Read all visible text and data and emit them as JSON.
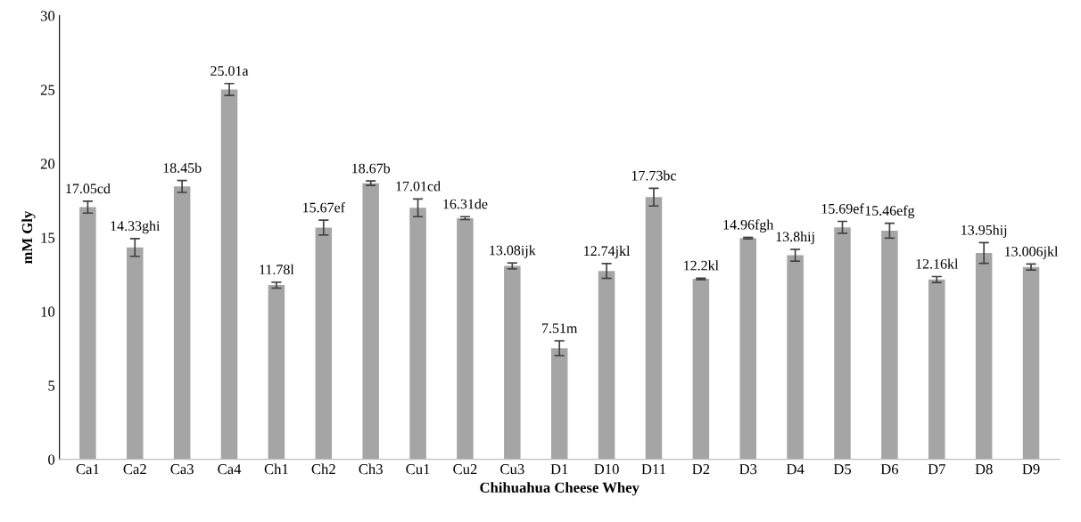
{
  "chart_data": {
    "type": "bar",
    "xlabel": "Chihuahua Cheese Whey",
    "ylabel": "mM Gly",
    "categories": [
      "Ca1",
      "Ca2",
      "Ca3",
      "Ca4",
      "Ch1",
      "Ch2",
      "Ch3",
      "Cu1",
      "Cu2",
      "Cu3",
      "D1",
      "D10",
      "D11",
      "D2",
      "D3",
      "D4",
      "D5",
      "D6",
      "D7",
      "D8",
      "D9"
    ],
    "values": [
      17.05,
      14.33,
      18.45,
      25.01,
      11.78,
      15.67,
      18.67,
      17.01,
      16.31,
      13.08,
      7.51,
      12.74,
      17.73,
      12.2,
      14.96,
      13.8,
      15.69,
      15.46,
      12.16,
      13.95,
      13.006
    ],
    "errors": [
      0.4,
      0.6,
      0.4,
      0.4,
      0.2,
      0.5,
      0.15,
      0.6,
      0.1,
      0.2,
      0.5,
      0.5,
      0.6,
      0.05,
      0.05,
      0.4,
      0.4,
      0.5,
      0.2,
      0.7,
      0.2
    ],
    "value_labels": [
      "17.05cd",
      "14.33ghi",
      "18.45b",
      "25.01a",
      "11.78l",
      "15.67ef",
      "18.67b",
      "17.01cd",
      "16.31de",
      "13.08ijk",
      "7.51m",
      "12.74jkl",
      "17.73bc",
      "12.2kl",
      "14.96fgh",
      "13.8hij",
      "15.69ef",
      "15.46efg",
      "12.16kl",
      "13.95hij",
      "13.006jkl"
    ],
    "color": "#a5a5a5",
    "ylim": [
      0,
      30
    ],
    "yticks": [
      0,
      5,
      10,
      15,
      20,
      25,
      30
    ],
    "grid": false
  }
}
